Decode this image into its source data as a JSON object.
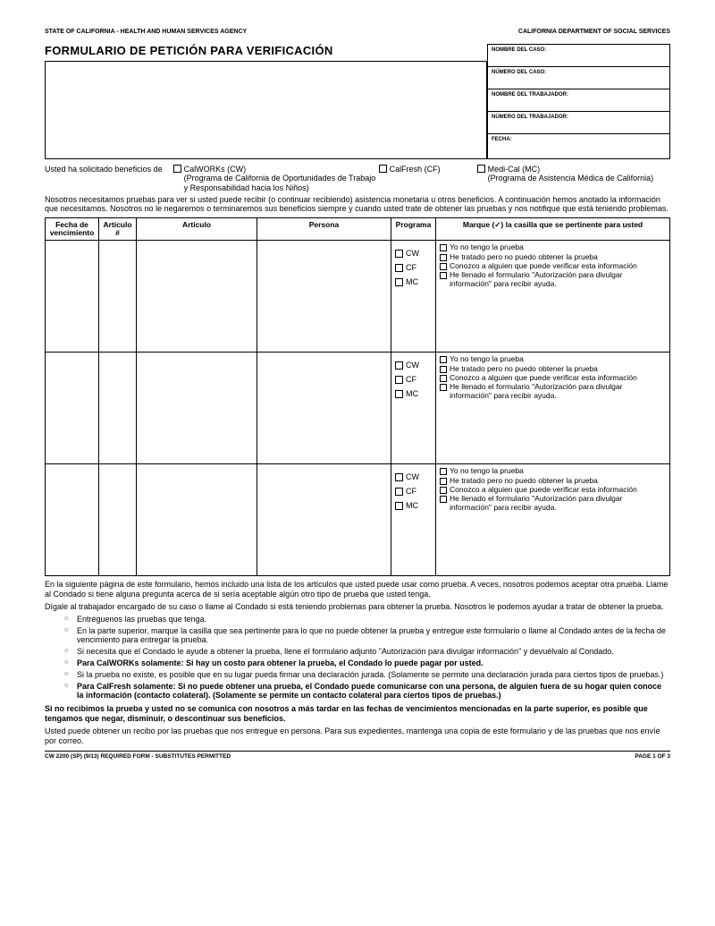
{
  "header": {
    "left": "STATE OF CALIFORNIA - HEALTH AND HUMAN SERVICES AGENCY",
    "right": "CALIFORNIA DEPARTMENT OF SOCIAL SERVICES"
  },
  "title": "FORMULARIO DE PETICIÓN PARA VERIFICACIÓN",
  "caseBox": {
    "f1": "NOMBRE DEL CASO:",
    "f2": "NÚMERO DEL CASO:",
    "f3": "NOMBRE DEL TRABAJADOR:",
    "f4": "NÚMERO DEL TRABAJADOR:",
    "f5": "FECHA:"
  },
  "benefits": {
    "lead": "Usted ha solicitado beneficios de",
    "cw": {
      "label": "CalWORKs (CW)",
      "sub": "(Programa de California de Oportunidades de Trabajo y Responsabilidad hacia los Niños)"
    },
    "cf": {
      "label": "CalFresh (CF)"
    },
    "mc": {
      "label": "Medi-Cal (MC)",
      "sub": "(Programa de Asistencia Médica de California)"
    }
  },
  "intro": "Nosotros necesitamos pruebas para ver si usted puede recibir (o continuar recibiendo) asistencia monetaria u otros beneficios. A continuación hemos anotado la información que necesitamos. Nosotros no le negaremos o terminaremos sus beneficios siempre y cuando usted trate de obtener las pruebas y nos notifique que está teniendo problemas.",
  "table": {
    "headers": {
      "fecha": "Fecha de vencimiento",
      "artnum": "Artículo #",
      "articulo": "Artículo",
      "persona": "Persona",
      "programa": "Programa",
      "marque": "Marque (✓) la casilla que se pertinente para usted"
    },
    "progs": {
      "cw": "CW",
      "cf": "CF",
      "mc": "MC"
    },
    "opts": {
      "o1": "Yo no tengo la prueba",
      "o2": "He tratado pero no puedo obtener la prueba",
      "o3": "Conozco a alguien que puede verificar esta información",
      "o4": "He llenado el formulario \"Autorización para divulgar información\" para recibir ayuda."
    }
  },
  "instr": {
    "p1": "En la siguiente página de este formulario, hemos incluido una lista de los artículos que usted puede usar como prueba. A veces, nosotros podemos aceptar otra prueba. Llame al Condado si tiene alguna pregunta acerca de si sería aceptable algún otro tipo de prueba que usted tenga.",
    "p2": "Dígale al trabajador encargado de su caso o llame al Condado si está teniendo problemas para obtener la prueba. Nosotros le podemos ayudar a tratar de obtener la prueba.",
    "b1": "Entréguenos las pruebas que tenga.",
    "b2": "En la parte superior, marque la casilla que sea pertinente para lo que no puede obtener la prueba y entregue este formulario o llame al Condado antes de la fecha de vencimiento para entregar la prueba.",
    "b3": "Si necesita que el Condado le ayude a obtener la prueba, llene el formulario adjunto \"Autorización para divulgar información\" y devuélvalo al Condado.",
    "b4": "Para CalWORKs solamente:  Si hay un costo para obtener la prueba, el Condado lo puede pagar por usted.",
    "b5": "Si la prueba no existe, es posible que en su lugar pueda firmar una declaración jurada. (Solamente se permite una declaración jurada para ciertos tipos de pruebas.)",
    "b6": "Para CalFresh solamente:  Si no puede obtener una prueba, el Condado puede comunicarse con una persona, de alguien fuera de su hogar quien conoce la información (contacto colateral). (Solamente se permite un contacto colateral para ciertos tipos de pruebas.)",
    "p3": "Si no recibimos la prueba y usted no se comunica con nosotros a más tardar en las fechas de vencimientos mencionadas en la parte superior, es posible que tengamos que negar, disminuir, o descontinuar sus beneficios.",
    "p4": "Usted puede obtener un recibo por las pruebas que nos entregue en persona. Para sus expedientes, mantenga una copia de este formulario y de las pruebas que nos envíe por correo."
  },
  "footer": {
    "left": "CW 2200 (SP) (9/13) REQUIRED FORM - SUBSTITUTES PERMITTED",
    "right": "PAGE 1 OF 3"
  }
}
